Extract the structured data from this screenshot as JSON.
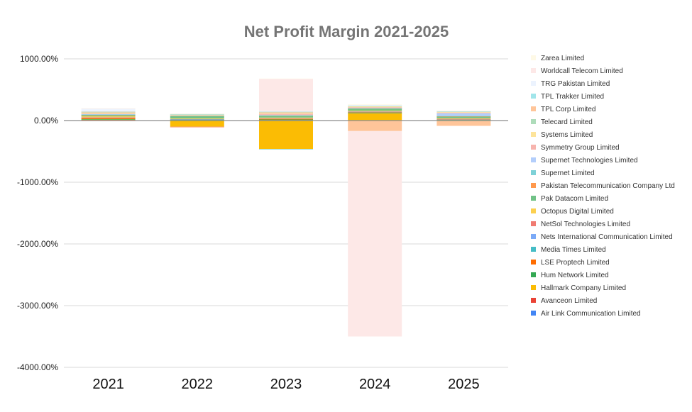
{
  "chart_data": {
    "type": "bar",
    "stacked": true,
    "title": "Net Profit Margin 2021-2025",
    "xlabel": "",
    "ylabel": "",
    "categories": [
      "2021",
      "2022",
      "2023",
      "2024",
      "2025"
    ],
    "ylim": [
      -4000,
      1000
    ],
    "yticks": [
      1000,
      0,
      -1000,
      -2000,
      -3000,
      -4000
    ],
    "ytick_labels": [
      "1000.00%",
      "0.00%",
      "-1000.00%",
      "-2000.00%",
      "-3000.00%",
      "-4000.00%"
    ],
    "grid": true,
    "legend_position": "right",
    "series": [
      {
        "name": "Air Link Communication Limited",
        "color": "#4285F4",
        "values": [
          3,
          2,
          2,
          2,
          2
        ]
      },
      {
        "name": "Avanceon Limited",
        "color": "#EA4335",
        "values": [
          8,
          5,
          6,
          4,
          3
        ]
      },
      {
        "name": "Hallmark Company Limited",
        "color": "#FBBC04",
        "values": [
          4,
          -100,
          -460,
          110,
          3
        ]
      },
      {
        "name": "Hum Network Limited",
        "color": "#34A853",
        "values": [
          8,
          6,
          10,
          8,
          6
        ]
      },
      {
        "name": "LSE Proptech Limited",
        "color": "#FF6D01",
        "values": [
          20,
          5,
          10,
          10,
          5
        ]
      },
      {
        "name": "Media Times Limited",
        "color": "#46BDC6",
        "values": [
          0,
          2,
          -2,
          5,
          -1
        ]
      },
      {
        "name": "Nets International Communication Limited",
        "color": "#7BAAF7",
        "values": [
          5,
          4,
          5,
          5,
          5
        ]
      },
      {
        "name": "NetSol Technologies Limited",
        "color": "#F07B72",
        "values": [
          5,
          -3,
          3,
          4,
          4
        ]
      },
      {
        "name": "Octopus Digital Limited",
        "color": "#FCD04F",
        "values": [
          15,
          10,
          12,
          12,
          10
        ]
      },
      {
        "name": "Pak Datacom Limited",
        "color": "#71C287",
        "values": [
          20,
          40,
          30,
          35,
          30
        ]
      },
      {
        "name": "Pakistan Telecommunication Company Ltd",
        "color": "#FF994D",
        "values": [
          5,
          2,
          5,
          3,
          1
        ]
      },
      {
        "name": "Supernet Limited",
        "color": "#7ED1D7",
        "values": [
          5,
          5,
          5,
          5,
          5
        ]
      },
      {
        "name": "Supernet Technologies Limited",
        "color": "#B3CEFB",
        "values": [
          5,
          3,
          5,
          3,
          45
        ]
      },
      {
        "name": "Symmetry Group Limited",
        "color": "#F7B4AE",
        "values": [
          10,
          -5,
          20,
          10,
          10
        ]
      },
      {
        "name": "Systems Limited",
        "color": "#FDE49B",
        "values": [
          15,
          12,
          15,
          14,
          12
        ]
      },
      {
        "name": "Telecard Limited",
        "color": "#AEDCBA",
        "values": [
          5,
          5,
          5,
          5,
          5
        ]
      },
      {
        "name": "TPL Corp Limited",
        "color": "#FFC599",
        "values": [
          10,
          -5,
          10,
          -170,
          -85
        ]
      },
      {
        "name": "TPL Trakker Limited",
        "color": "#A1E5EA",
        "values": [
          5,
          3,
          3,
          3,
          3
        ]
      },
      {
        "name": "TRG Pakistan Limited",
        "color": "#ECF3FE",
        "values": [
          45,
          5,
          10,
          15,
          5
        ]
      },
      {
        "name": "Worldcall Telecom Limited",
        "color": "#FDE8E7",
        "values": [
          5,
          3,
          520,
          -3330,
          3
        ]
      },
      {
        "name": "Zarea Limited",
        "color": "#FEF9E6",
        "values": [
          5,
          3,
          5,
          10,
          5
        ]
      }
    ]
  }
}
